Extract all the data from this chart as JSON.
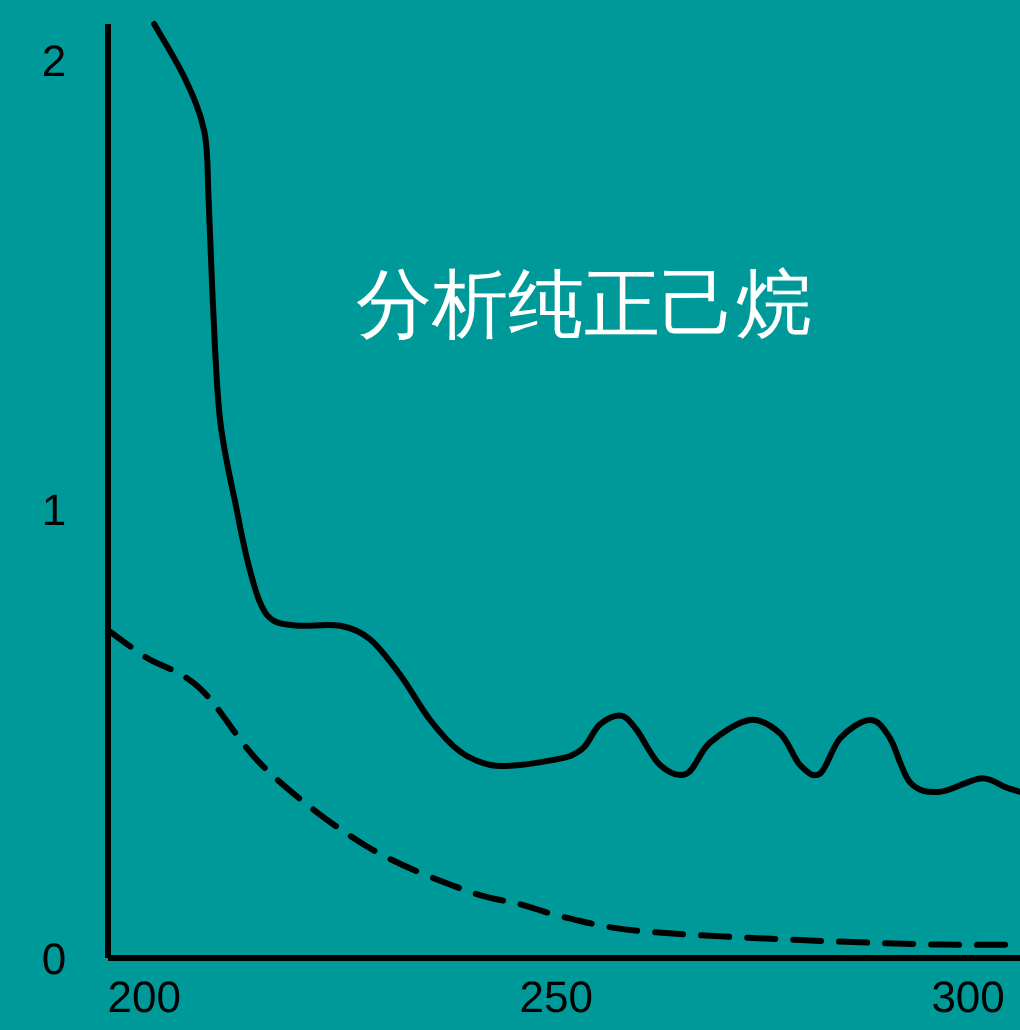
{
  "chart_data": {
    "type": "line",
    "title": "分析纯正己烷",
    "xlim": [
      195.6,
      306.3
    ],
    "ylim": [
      0,
      2.08
    ],
    "xticks": [
      200,
      250,
      300
    ],
    "yticks": [
      0,
      1,
      2
    ],
    "grid": false,
    "series": [
      {
        "color": "#000000",
        "line_style": "solid",
        "x": [
          201.2,
          204.9,
          207.3,
          207.8,
          208.3,
          209.2,
          211.2,
          212.6,
          214.1,
          215.8,
          218.9,
          223.8,
          227.4,
          231.1,
          234.7,
          238.3,
          242,
          245.6,
          249.3,
          251.7,
          253.4,
          255.3,
          257.8,
          259.7,
          262.6,
          265.8,
          268.7,
          273.5,
          277.2,
          279.6,
          282,
          284.5,
          288.1,
          290.5,
          293,
          296.6,
          301.5,
          304.6,
          306.3
        ],
        "values": [
          2.08,
          1.96,
          1.84,
          1.69,
          1.47,
          1.2,
          1.0,
          0.88,
          0.79,
          0.75,
          0.74,
          0.74,
          0.71,
          0.63,
          0.53,
          0.46,
          0.43,
          0.43,
          0.44,
          0.45,
          0.47,
          0.52,
          0.54,
          0.51,
          0.43,
          0.41,
          0.48,
          0.53,
          0.5,
          0.43,
          0.41,
          0.49,
          0.53,
          0.49,
          0.39,
          0.37,
          0.4,
          0.38,
          0.37
        ]
      },
      {
        "color": "#000000",
        "line_style": "dashed",
        "x": [
          195.6,
          200.2,
          206.8,
          214.8,
          226.9,
          239.1,
          245.6,
          251.2,
          260.2,
          279.6,
          296.6,
          306.3
        ],
        "values": [
          0.73,
          0.67,
          0.6,
          0.42,
          0.25,
          0.15,
          0.12,
          0.09,
          0.06,
          0.04,
          0.03,
          0.03
        ]
      }
    ]
  }
}
